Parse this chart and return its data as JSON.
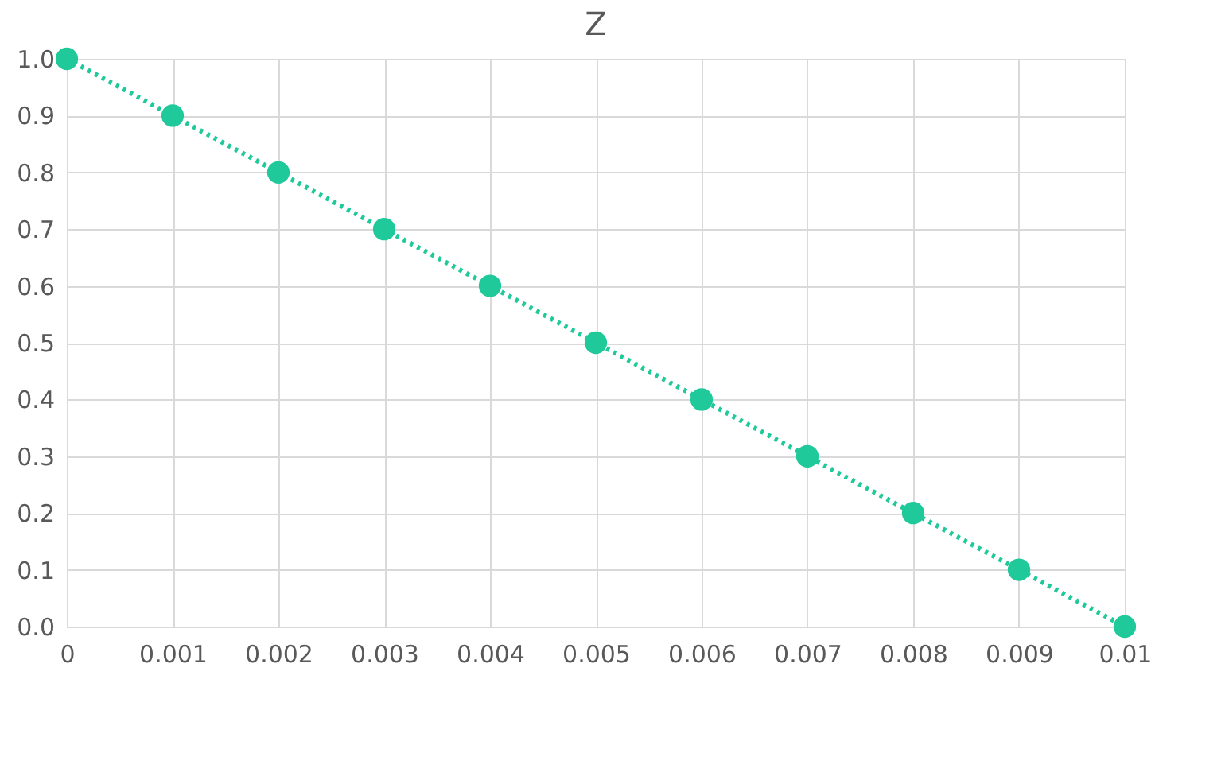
{
  "chart_data": {
    "type": "line",
    "title": "Z",
    "x": [
      0,
      0.001,
      0.002,
      0.003,
      0.004,
      0.005,
      0.006,
      0.007,
      0.008,
      0.009,
      0.01
    ],
    "series": [
      {
        "color": "#1fc99a",
        "values": [
          1.0,
          0.9,
          0.8,
          0.7,
          0.6,
          0.5,
          0.4,
          0.3,
          0.2,
          0.1,
          0.0
        ]
      }
    ],
    "xlim": [
      0,
      0.01
    ],
    "xticks": [
      0,
      0.001,
      0.002,
      0.003,
      0.004,
      0.005,
      0.006,
      0.007,
      0.008,
      0.009,
      0.01
    ],
    "ylim": [
      0,
      1.0
    ],
    "yticks": [
      {
        "value": 0,
        "label": "0.0"
      },
      0.1,
      0.2,
      0.3,
      0.4,
      0.5,
      0.6,
      0.7,
      0.8,
      0.9,
      {
        "value": 1,
        "label": "1.0"
      }
    ],
    "grid": true,
    "marker": "circle",
    "line_style": "dotted"
  }
}
